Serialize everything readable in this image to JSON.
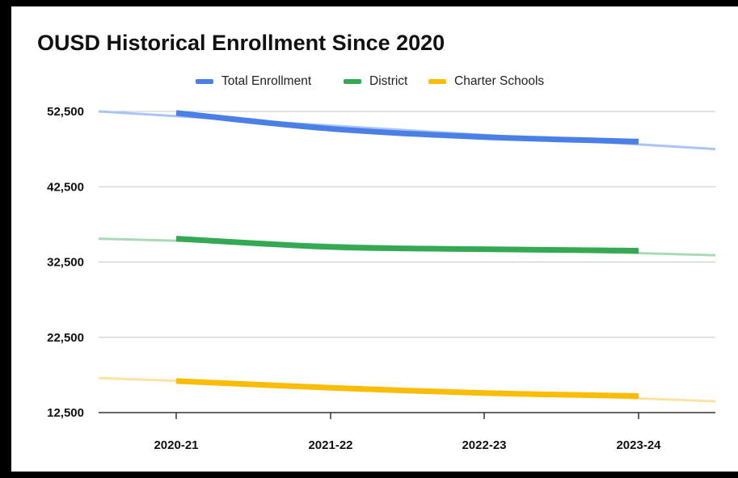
{
  "chart_data": {
    "type": "line",
    "title": "OUSD Historical Enrollment Since 2020",
    "categories": [
      "2020-21",
      "2021-22",
      "2022-23",
      "2023-24"
    ],
    "series": [
      {
        "name": "Total Enrollment",
        "color": "#4a80e6",
        "trend_color": "#a9c4f5",
        "values": [
          52300,
          50200,
          49100,
          48500
        ]
      },
      {
        "name": "District",
        "color": "#34a853",
        "trend_color": "#a8dab5",
        "values": [
          35600,
          34500,
          34200,
          34000
        ]
      },
      {
        "name": "Charter Schools",
        "color": "#fbbc04",
        "trend_color": "#fbe3a3",
        "values": [
          16700,
          15800,
          15100,
          14700
        ]
      }
    ],
    "trendlines": [
      {
        "series": "Total Enrollment",
        "start": 52500,
        "end": 47500
      },
      {
        "series": "District",
        "start": 35600,
        "end": 33400
      },
      {
        "series": "Charter Schools",
        "start": 17100,
        "end": 14000
      }
    ],
    "yticks": [
      "52,500",
      "42,500",
      "32,500",
      "22,500",
      "12,500"
    ],
    "ytick_values": [
      52500,
      42500,
      32500,
      22500,
      12500
    ],
    "ylim": [
      12500,
      52500
    ],
    "xlabel": "",
    "ylabel": "",
    "grid": true,
    "legend_position": "top-center"
  }
}
